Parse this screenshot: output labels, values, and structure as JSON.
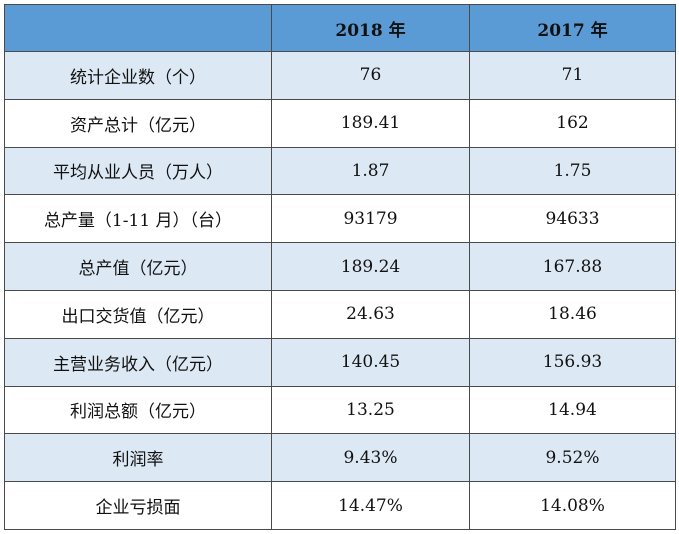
{
  "header": {
    "label_col": "",
    "col_2018": "2018 年",
    "col_2017": "2017 年"
  },
  "rows": [
    {
      "label": "统计企业数（个）",
      "v2018": "76",
      "v2017": "71"
    },
    {
      "label": "资产总计（亿元）",
      "v2018": "189.41",
      "v2017": "162"
    },
    {
      "label": "平均从业人员（万人）",
      "v2018": "1.87",
      "v2017": "1.75"
    },
    {
      "label": "总产量（1-11 月）（台）",
      "v2018": "93179",
      "v2017": "94633"
    },
    {
      "label": "总产值（亿元）",
      "v2018": "189.24",
      "v2017": "167.88"
    },
    {
      "label": "出口交货值（亿元）",
      "v2018": "24.63",
      "v2017": "18.46"
    },
    {
      "label": "主营业务收入（亿元）",
      "v2018": "140.45",
      "v2017": "156.93"
    },
    {
      "label": "利润总额（亿元）",
      "v2018": "13.25",
      "v2017": "14.94"
    },
    {
      "label": "利润率",
      "v2018": "9.43%",
      "v2017": "9.52%"
    },
    {
      "label": "企业亏损面",
      "v2018": "14.47%",
      "v2017": "14.08%"
    }
  ],
  "colors": {
    "header_bg": "#5b9bd5",
    "shaded_row_bg": "#dce8f4",
    "border": "#4a4a4a"
  }
}
